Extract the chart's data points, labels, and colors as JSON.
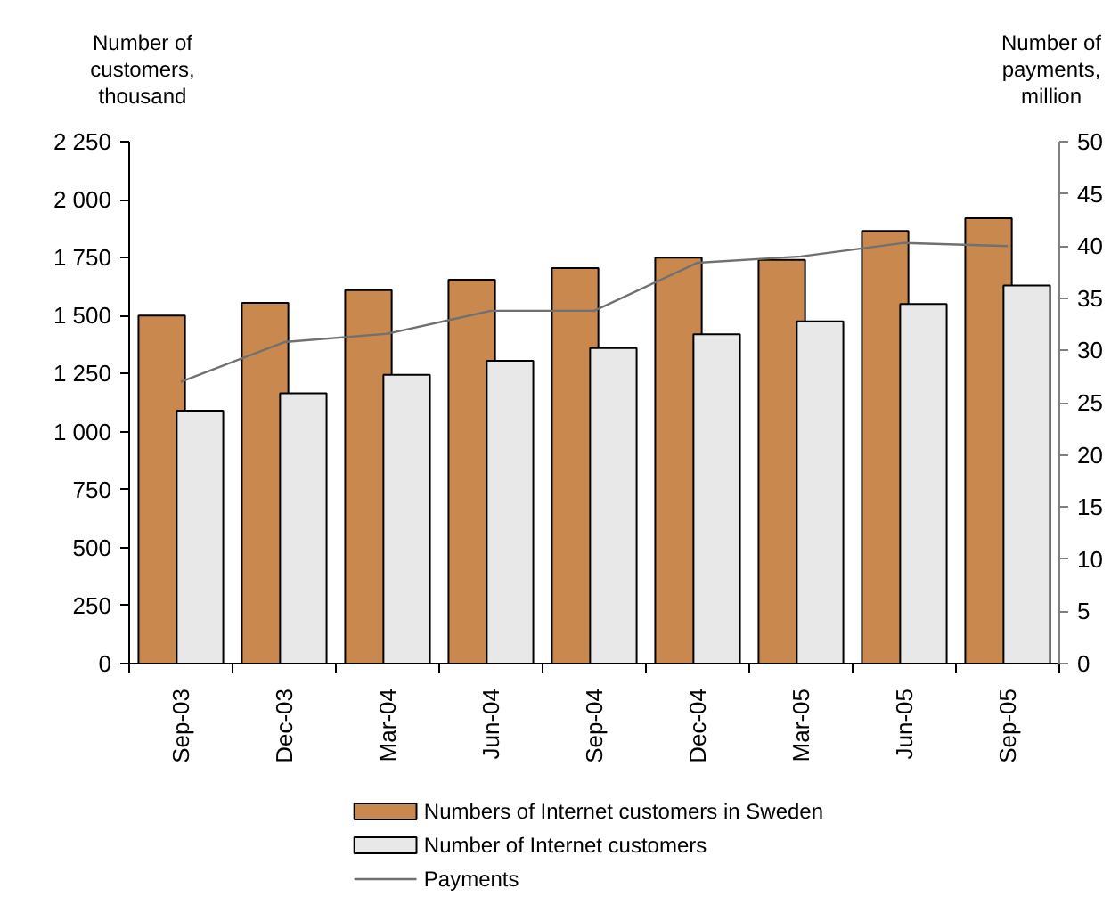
{
  "chart_data": {
    "type": "bar",
    "ylabel": "Number of customers, thousand",
    "y2label": "Number of payments, million",
    "categories": [
      "Sep-03",
      "Dec-03",
      "Mar-04",
      "Jun-04",
      "Sep-04",
      "Dec-04",
      "Mar-05",
      "Jun-05",
      "Sep-05"
    ],
    "series": [
      {
        "name": "Numbers of Internet customers in Sweden",
        "color": "#c8884e",
        "values": [
          1500,
          1555,
          1610,
          1655,
          1705,
          1750,
          1740,
          1865,
          1920
        ]
      },
      {
        "name": "Number of Internet customers",
        "color": "#e8e8e8",
        "values": [
          1090,
          1165,
          1245,
          1305,
          1360,
          1420,
          1475,
          1550,
          1630
        ]
      },
      {
        "name": "Payments",
        "type": "line",
        "axis": "y2",
        "color": "#707070",
        "values": [
          27.0,
          30.8,
          31.6,
          33.8,
          33.8,
          38.4,
          39.0,
          40.3,
          40.0
        ]
      }
    ],
    "ylim": [
      0,
      2250
    ],
    "yticks": [
      0,
      250,
      500,
      750,
      {
        "value": 1000,
        "label": "1 000"
      },
      {
        "value": 1250,
        "label": "1 250"
      },
      {
        "value": 1500,
        "label": "1 500"
      },
      {
        "value": 1750,
        "label": "1 750"
      },
      {
        "value": 2000,
        "label": "2 000"
      },
      {
        "value": 2250,
        "label": "2 250"
      }
    ],
    "y2lim": [
      0,
      50
    ],
    "y2ticks": [
      0,
      5,
      10,
      15,
      20,
      25,
      30,
      35,
      40,
      45,
      50
    ],
    "legend": "bottom",
    "grid": false
  }
}
